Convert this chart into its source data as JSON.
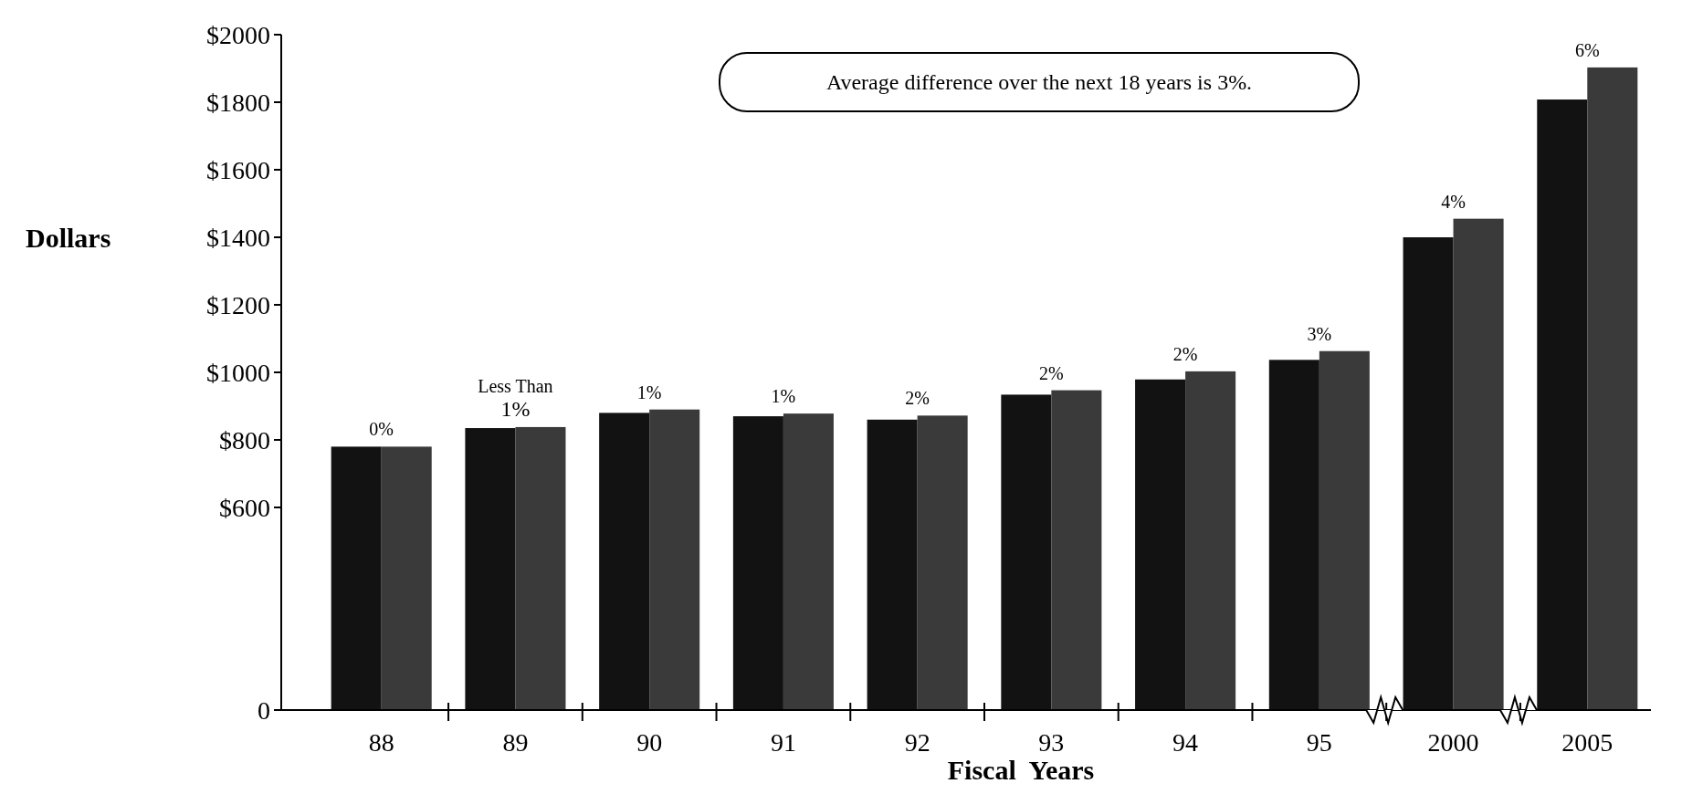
{
  "chart_data": {
    "type": "bar",
    "xlabel": "Fiscal  Years",
    "ylabel": "Dollars",
    "categories": [
      "88",
      "89",
      "90",
      "91",
      "92",
      "93",
      "94",
      "95",
      "2000",
      "2005"
    ],
    "series": [
      {
        "color": "#121212",
        "values": [
          780,
          835,
          880,
          870,
          860,
          934,
          979,
          1037,
          1400,
          1808
        ]
      },
      {
        "color": "#3a3a3a",
        "values": [
          780,
          838,
          890,
          878,
          872,
          947,
          1003,
          1063,
          1455,
          1903
        ]
      }
    ],
    "ylim": [
      0,
      2000
    ],
    "yticks": [
      0,
      {
        "value": 600,
        "label": "$600"
      },
      {
        "value": 800,
        "label": "$800"
      },
      {
        "value": 1000,
        "label": "$1000"
      },
      {
        "value": 1200,
        "label": "$1200"
      },
      {
        "value": 1400,
        "label": "$1400"
      },
      {
        "value": 1600,
        "label": "$1600"
      },
      {
        "value": 1800,
        "label": "$1800"
      },
      {
        "value": 2000,
        "label": "$2000"
      }
    ],
    "grid": false,
    "annotations": [
      "Average difference over the next 18 years is 3%.",
      {
        "text": "0%",
        "x": "88",
        "y": 780
      },
      {
        "text": "Less Than 1%",
        "x": "89",
        "y": 838
      },
      {
        "text": "1%",
        "x": "90",
        "y": 890
      },
      {
        "text": "1%",
        "x": "91",
        "y": 878
      },
      {
        "text": "2%",
        "x": "92",
        "y": 872
      },
      {
        "text": "2%",
        "x": "93",
        "y": 947
      },
      {
        "text": "2%",
        "x": "94",
        "y": 1003
      },
      {
        "text": "3%",
        "x": "95",
        "y": 1063
      },
      {
        "text": "4%",
        "x": "2000",
        "y": 1455
      },
      {
        "text": "6%",
        "x": "2005",
        "y": 1903
      }
    ]
  }
}
